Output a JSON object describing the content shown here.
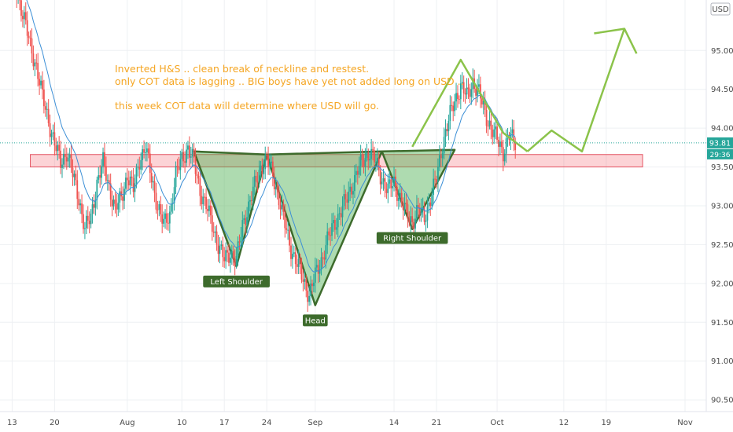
{
  "chart_data": {
    "type": "candlestick",
    "currency_badge": "USD",
    "price_ticks": [
      "95.00",
      "94.50",
      "94.00",
      "93.50",
      "93.00",
      "92.50",
      "92.00",
      "91.50",
      "91.00",
      "90.50"
    ],
    "price_tick_values": [
      95.0,
      94.5,
      94.0,
      93.5,
      93.0,
      92.5,
      92.0,
      91.5,
      91.0,
      90.5
    ],
    "ylim": [
      90.35,
      95.65
    ],
    "date_ticks": [
      {
        "label": "13",
        "day": 0
      },
      {
        "label": "20",
        "day": 7
      },
      {
        "label": "Aug",
        "day": 19
      },
      {
        "label": "10",
        "day": 28
      },
      {
        "label": "17",
        "day": 35
      },
      {
        "label": "24",
        "day": 42
      },
      {
        "label": "Sep",
        "day": 50
      },
      {
        "label": "14",
        "day": 63
      },
      {
        "label": "21",
        "day": 70
      },
      {
        "label": "Oct",
        "day": 80
      },
      {
        "label": "12",
        "day": 91
      },
      {
        "label": "19",
        "day": 98
      },
      {
        "label": "Nov",
        "day": 111
      }
    ],
    "xlim": [
      -2,
      114.5
    ],
    "current_price": "93.81",
    "current_price_value": 93.81,
    "countdown": "29:36",
    "support_zone": {
      "from_day": 3,
      "to_day": 104,
      "low": 93.5,
      "high": 93.66
    },
    "annotation_lines": [
      "Inverted H&S .. clean break of neckline and restest.",
      "only COT data is lagging .. BIG boys have yet not added long on USD ..",
      "",
      "this week COT data will determine where USD will go."
    ],
    "pattern_labels": {
      "left_shoulder": "Left Shoulder",
      "head": "Head",
      "right_shoulder": "Right Shoulder"
    },
    "pattern_triangles": [
      {
        "name": "left_shoulder",
        "points": [
          [
            30,
            93.7
          ],
          [
            42,
            93.66
          ],
          [
            37,
            92.22
          ]
        ]
      },
      {
        "name": "head",
        "points": [
          [
            42,
            93.66
          ],
          [
            61,
            93.7
          ],
          [
            50,
            91.72
          ]
        ]
      },
      {
        "name": "right_shoulder",
        "points": [
          [
            61,
            93.7
          ],
          [
            73,
            93.72
          ],
          [
            66,
            92.7
          ]
        ]
      }
    ],
    "pattern_label_anchors": [
      {
        "name": "left_shoulder",
        "day": 37,
        "price": 92.02
      },
      {
        "name": "head",
        "day": 50,
        "price": 91.52
      },
      {
        "name": "right_shoulder",
        "day": 66,
        "price": 92.58
      }
    ],
    "projection_past": [
      [
        66,
        93.76
      ],
      [
        74,
        94.88
      ],
      [
        81,
        93.94
      ],
      [
        85,
        93.7
      ]
    ],
    "projection_future": [
      [
        85,
        93.7
      ],
      [
        89,
        93.97
      ],
      [
        94,
        93.7
      ],
      [
        101,
        95.28
      ]
    ],
    "arrowhead": [
      [
        96,
        95.22
      ],
      [
        101,
        95.28
      ],
      [
        103,
        94.96
      ]
    ],
    "closes": [
      [
        0,
        95.95
      ],
      [
        1,
        95.7
      ],
      [
        2,
        95.4
      ],
      [
        3,
        95.05
      ],
      [
        4,
        94.8
      ],
      [
        5,
        94.4
      ],
      [
        6,
        94.1
      ],
      [
        7,
        93.8
      ],
      [
        8,
        93.55
      ],
      [
        9,
        93.7
      ],
      [
        10,
        93.4
      ],
      [
        11,
        93.1
      ],
      [
        12,
        92.7
      ],
      [
        13,
        92.85
      ],
      [
        14,
        93.3
      ],
      [
        15,
        93.55
      ],
      [
        16,
        93.25
      ],
      [
        17,
        92.95
      ],
      [
        18,
        93.1
      ],
      [
        19,
        93.4
      ],
      [
        20,
        93.2
      ],
      [
        21,
        93.6
      ],
      [
        22,
        93.75
      ],
      [
        23,
        93.35
      ],
      [
        24,
        93.0
      ],
      [
        25,
        92.75
      ],
      [
        26,
        92.9
      ],
      [
        27,
        93.4
      ],
      [
        28,
        93.6
      ],
      [
        29,
        93.75
      ],
      [
        30,
        93.55
      ],
      [
        31,
        93.2
      ],
      [
        32,
        93.0
      ],
      [
        33,
        92.75
      ],
      [
        34,
        92.5
      ],
      [
        35,
        92.3
      ],
      [
        36,
        92.4
      ],
      [
        37,
        92.3
      ],
      [
        38,
        92.75
      ],
      [
        39,
        93.0
      ],
      [
        40,
        93.25
      ],
      [
        41,
        93.5
      ],
      [
        42,
        93.6
      ],
      [
        43,
        93.4
      ],
      [
        44,
        93.1
      ],
      [
        45,
        92.75
      ],
      [
        46,
        92.45
      ],
      [
        47,
        92.25
      ],
      [
        48,
        92.05
      ],
      [
        49,
        91.85
      ],
      [
        50,
        92.1
      ],
      [
        51,
        92.3
      ],
      [
        52,
        92.55
      ],
      [
        53,
        92.75
      ],
      [
        54,
        92.9
      ],
      [
        55,
        93.05
      ],
      [
        56,
        93.25
      ],
      [
        57,
        93.45
      ],
      [
        58,
        93.6
      ],
      [
        59,
        93.7
      ],
      [
        60,
        93.55
      ],
      [
        61,
        93.35
      ],
      [
        62,
        93.2
      ],
      [
        63,
        93.3
      ],
      [
        64,
        93.1
      ],
      [
        65,
        92.9
      ],
      [
        66,
        92.8
      ],
      [
        67,
        92.95
      ],
      [
        68,
        92.85
      ],
      [
        69,
        93.1
      ],
      [
        70,
        93.35
      ],
      [
        71,
        93.8
      ],
      [
        72,
        94.1
      ],
      [
        73,
        94.35
      ],
      [
        74,
        94.55
      ],
      [
        75,
        94.4
      ],
      [
        76,
        94.6
      ],
      [
        77,
        94.45
      ],
      [
        78,
        94.2
      ],
      [
        79,
        94.0
      ],
      [
        80,
        93.85
      ],
      [
        81,
        93.7
      ],
      [
        82,
        93.9
      ],
      [
        83,
        93.81
      ]
    ]
  }
}
